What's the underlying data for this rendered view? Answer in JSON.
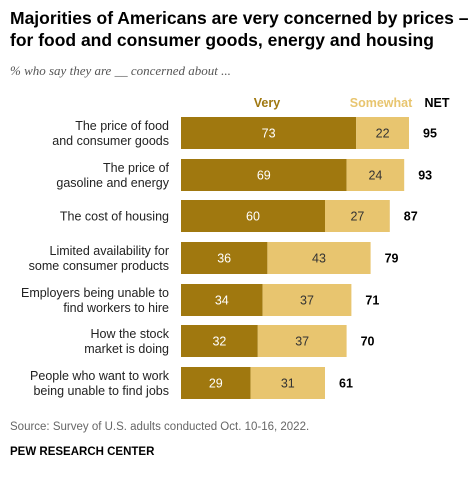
{
  "title": "Majorities of Americans are very concerned by prices – for food and consumer goods, energy and housing",
  "subtitle": "% who say they are __ concerned about ...",
  "source": "Source: Survey of U.S. adults conducted Oct. 10-16, 2022.",
  "brand": "PEW RESEARCH CENTER",
  "colors": {
    "very": "#a0780f",
    "somewhat": "#e8c56f",
    "label_dark": "#ffffff",
    "label_light": "#333333"
  },
  "chart_data": {
    "type": "bar",
    "orientation": "horizontal",
    "stacked": true,
    "legend": {
      "very": "Very",
      "somewhat": "Somewhat",
      "net": "NET"
    },
    "categories": [
      [
        "The price of food",
        "and consumer goods"
      ],
      [
        "The price of",
        "gasoline and energy"
      ],
      [
        "The cost of housing"
      ],
      [
        "Limited availability for",
        "some consumer products"
      ],
      [
        "Employers being unable to",
        "find workers to hire"
      ],
      [
        "How the stock",
        "market is doing"
      ],
      [
        "People who want to work",
        "being unable to find jobs"
      ]
    ],
    "series": [
      {
        "name": "Very",
        "values": [
          73,
          69,
          60,
          36,
          34,
          32,
          29
        ]
      },
      {
        "name": "Somewhat",
        "values": [
          22,
          24,
          27,
          43,
          37,
          37,
          31
        ]
      }
    ],
    "net": [
      95,
      93,
      87,
      79,
      71,
      70,
      61
    ]
  }
}
